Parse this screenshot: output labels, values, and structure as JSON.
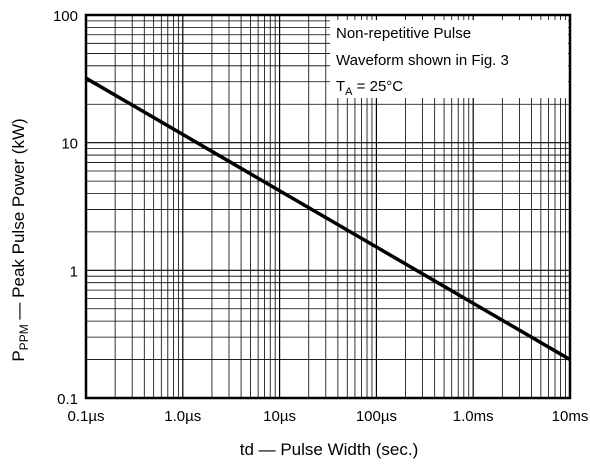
{
  "chart_data": {
    "type": "line",
    "x_scale": "log",
    "y_scale": "log",
    "xlim": [
      "0.1µs",
      "10ms"
    ],
    "ylim": [
      0.1,
      100
    ],
    "grid": true,
    "x_ticks": [
      "0.1µs",
      "1.0µs",
      "10µs",
      "100µs",
      "1.0ms",
      "10ms"
    ],
    "y_ticks": [
      "100",
      "10",
      "1",
      "0.1"
    ],
    "xlabel": "td — Pulse Width (sec.)",
    "ylabel": {
      "prefix": "P",
      "subscript": "PPM",
      "suffix": " — Peak Pulse Power (kW)"
    },
    "series": [
      {
        "x": [
          "0.1µs",
          "10ms"
        ],
        "y": [
          32,
          0.2
        ]
      }
    ],
    "annotation": {
      "line1": "Non-repetitive Pulse",
      "line2": "Waveform shown in Fig. 3",
      "line3_prefix": "T",
      "line3_subscript": "A",
      "line3_suffix": " = 25°C"
    }
  }
}
